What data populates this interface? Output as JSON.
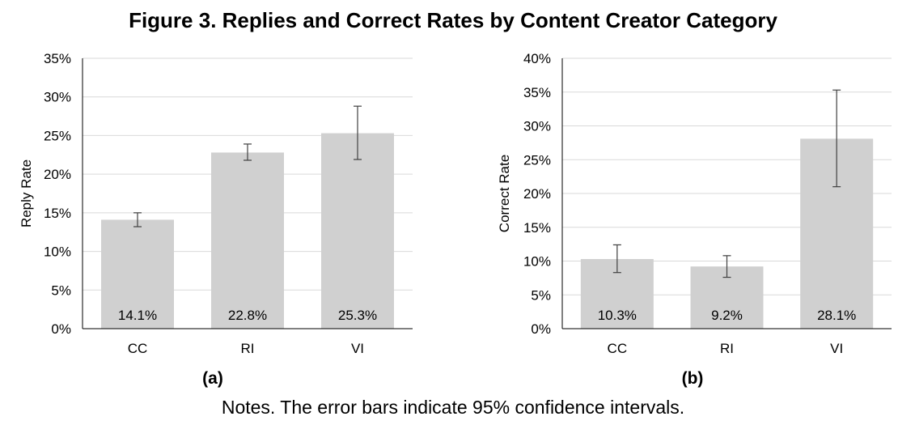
{
  "title": "Figure 3. Replies and Correct Rates by Content Creator Category",
  "notes": "Notes. The error bars indicate 95% confidence intervals.",
  "panel_labels": [
    "(a)",
    "(b)"
  ],
  "colors": {
    "bar": "#d0d0d0",
    "grid": "#d9d9d9",
    "axis": "#000000",
    "errorbar": "#404040"
  },
  "chart_data": [
    {
      "type": "bar",
      "categories": [
        "CC",
        "RI",
        "VI"
      ],
      "values": [
        14.1,
        22.8,
        25.3
      ],
      "data_labels": [
        "14.1%",
        "22.8%",
        "25.3%"
      ],
      "error_low": [
        13.2,
        21.8,
        21.9
      ],
      "error_high": [
        15.0,
        23.9,
        28.8
      ],
      "ylabel": "Reply Rate",
      "xlabel": "",
      "ylim": [
        0,
        35
      ],
      "ytick_values": [
        0,
        5,
        10,
        15,
        20,
        25,
        30,
        35
      ],
      "ytick_labels": [
        "0%",
        "5%",
        "10%",
        "15%",
        "20%",
        "25%",
        "30%",
        "35%"
      ],
      "grid": true,
      "legend": "none"
    },
    {
      "type": "bar",
      "categories": [
        "CC",
        "RI",
        "VI"
      ],
      "values": [
        10.3,
        9.2,
        28.1
      ],
      "data_labels": [
        "10.3%",
        "9.2%",
        "28.1%"
      ],
      "error_low": [
        8.3,
        7.6,
        21.0
      ],
      "error_high": [
        12.4,
        10.8,
        35.3
      ],
      "ylabel": "Correct Rate",
      "xlabel": "",
      "ylim": [
        0,
        40
      ],
      "ytick_values": [
        0,
        5,
        10,
        15,
        20,
        25,
        30,
        35,
        40
      ],
      "ytick_labels": [
        "0%",
        "5%",
        "10%",
        "15%",
        "20%",
        "25%",
        "30%",
        "35%",
        "40%"
      ],
      "grid": true,
      "legend": "none"
    }
  ]
}
